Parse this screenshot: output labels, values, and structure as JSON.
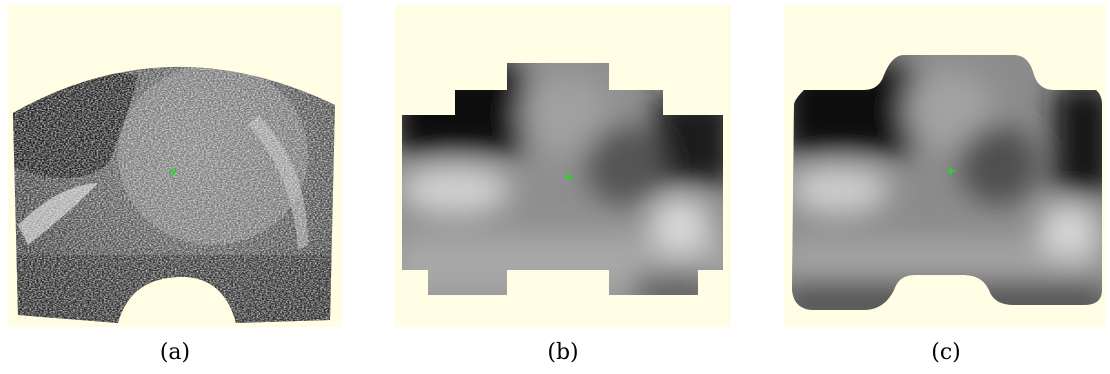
{
  "figure": {
    "panels": [
      {
        "caption": "(a)",
        "content": "ultrasound-image"
      },
      {
        "caption": "(b)",
        "content": "blocky-reconstruction"
      },
      {
        "caption": "(c)",
        "content": "smoothed-reconstruction"
      }
    ],
    "colors": {
      "background": "#fffde3",
      "marker": "#22dd22"
    }
  }
}
